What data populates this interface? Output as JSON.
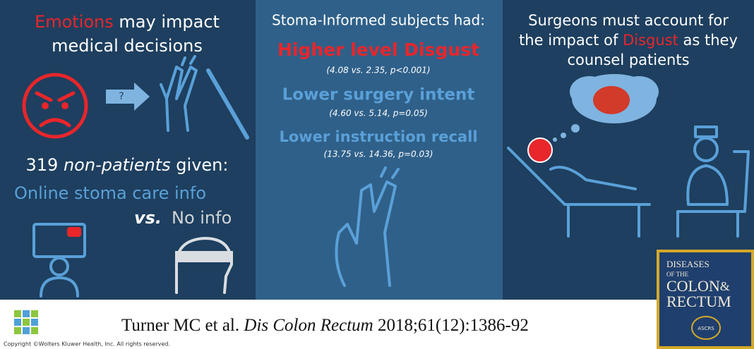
{
  "left": {
    "heading_highlight": "Emotions",
    "heading_rest": "may impact",
    "heading_line2": "medical decisions",
    "arrow_label": "?",
    "subjects_count": "319",
    "subjects_kind": "non-patients",
    "subjects_given": "given:",
    "group_a": "Online stoma care info",
    "versus": "vs.",
    "group_b": "No info"
  },
  "middle": {
    "title": "Stoma-Informed subjects had:",
    "findings": [
      {
        "label": "Higher level Disgust",
        "stats": "(4.08 vs. 2.35, p<0.001)"
      },
      {
        "label": "Lower surgery intent",
        "stats": "(4.60 vs. 5.14, p=0.05)"
      },
      {
        "label": "Lower instruction recall",
        "stats": "(13.75 vs. 14.36, p=0.03)"
      }
    ]
  },
  "right": {
    "line1": "Surgeons must account for",
    "line2_start": "the impact of",
    "line2_highlight": "Disgust",
    "line2_end": "as they",
    "line3": "counsel patients"
  },
  "footer": {
    "authors": "Turner MC et al.",
    "journal": "Dis Colon Rectum",
    "reference": "2018;61(12):1386-92",
    "copyright": "Copyright ©Wolters Kluwer Health, Inc. All rights reserved."
  },
  "logo": {
    "line1": "DISEASES",
    "line2": "OF THE",
    "line3": "COLON",
    "ampersand": "&",
    "line4": "RECTUM",
    "seal": "ASCRS"
  }
}
